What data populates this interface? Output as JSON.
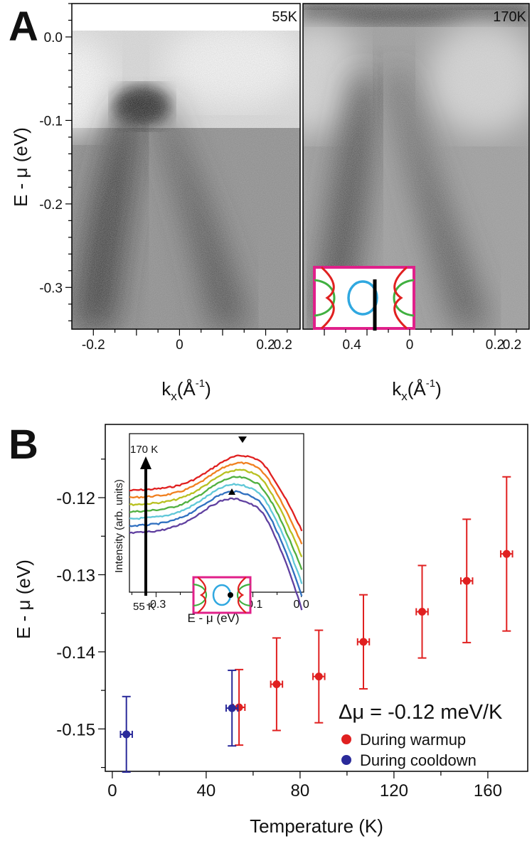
{
  "panel_labels": {
    "a": "A",
    "b": "B"
  },
  "chart_data": [
    {
      "type": "heatmap",
      "panel": "A-left",
      "title": "55K",
      "xlabel": "k",
      "xlabel_sub": "x",
      "xlabel_unit": "(Å",
      "xlabel_exp": "-1",
      "xlabel_close": ")",
      "ylabel": "E - μ (eV)",
      "xlim": [
        -0.25,
        0.28
      ],
      "ylim": [
        -0.35,
        0.04
      ],
      "xticks": [
        "-0.2",
        "0",
        "0.2",
        "0.4",
        "0.2"
      ],
      "yticks": [
        "0.0",
        "-0.1",
        "-0.2",
        "-0.3"
      ],
      "ytick_values": [
        0.0,
        -0.1,
        -0.2,
        -0.3
      ],
      "colormap": "grayscale, dark = high intensity",
      "band_apex": {
        "k": 0.03,
        "E": -0.07
      }
    },
    {
      "type": "heatmap",
      "panel": "A-right",
      "title": "170K",
      "xlabel": "k",
      "xlabel_sub": "x",
      "xlabel_unit": "(Å",
      "xlabel_exp": "-1",
      "xlabel_close": ")",
      "xlim": [
        -0.25,
        0.28
      ],
      "ylim": [
        -0.35,
        0.04
      ],
      "xticks": [
        "0",
        "0.2",
        "0.4",
        "0.2"
      ],
      "colormap": "grayscale, dark = high intensity",
      "inset": "Fermi surface schematic with cut line"
    },
    {
      "type": "scatter",
      "panel": "B",
      "xlabel": "Temperature (K)",
      "ylabel": "E - μ (eV)",
      "xlim": [
        -3,
        177
      ],
      "ylim": [
        -0.1555,
        -0.1105
      ],
      "xticks": [
        0,
        40,
        80,
        120,
        160
      ],
      "yticks": [
        -0.12,
        -0.13,
        -0.14,
        -0.15
      ],
      "annotation": "Δμ = -0.12 meV/K",
      "legend_position": "bottom-right",
      "series": [
        {
          "name": "During warmup",
          "color": "#e02020",
          "points": [
            {
              "x": 54,
              "y": -0.1472,
              "xerr": 2.5,
              "yerr": 0.0049
            },
            {
              "x": 70,
              "y": -0.1442,
              "xerr": 2.5,
              "yerr": 0.006
            },
            {
              "x": 88,
              "y": -0.1432,
              "xerr": 2.5,
              "yerr": 0.006
            },
            {
              "x": 107,
              "y": -0.1387,
              "xerr": 2.5,
              "yerr": 0.0061
            },
            {
              "x": 132,
              "y": -0.1348,
              "xerr": 2.5,
              "yerr": 0.006
            },
            {
              "x": 151,
              "y": -0.1308,
              "xerr": 2.5,
              "yerr": 0.008
            },
            {
              "x": 168,
              "y": -0.1273,
              "xerr": 2.5,
              "yerr": 0.01
            }
          ]
        },
        {
          "name": "During cooldown",
          "color": "#2a2a9a",
          "points": [
            {
              "x": 6,
              "y": -0.1507,
              "xerr": 2.5,
              "yerr": 0.0049
            },
            {
              "x": 51,
              "y": -0.1473,
              "xerr": 2.5,
              "yerr": 0.0049
            }
          ]
        }
      ]
    },
    {
      "type": "line",
      "panel": "B-inset",
      "xlabel": "E - μ (eV)",
      "ylabel": "Intensity (arb. units)",
      "xlim": [
        -0.355,
        0.005
      ],
      "xticks": [
        "-0.3",
        "-0.2",
        "-0.1",
        "0.0"
      ],
      "xtick_values": [
        -0.3,
        -0.2,
        -0.1,
        0.0
      ],
      "arrow_top_label": "170 K",
      "arrow_bottom_label": "55 K",
      "peak_markers": [
        -0.125,
        -0.145
      ],
      "series": [
        {
          "color": "#e02020"
        },
        {
          "color": "#f08020"
        },
        {
          "color": "#b8c020"
        },
        {
          "color": "#50b040"
        },
        {
          "color": "#60c8d8"
        },
        {
          "color": "#3070c0"
        },
        {
          "color": "#6040a0"
        }
      ]
    }
  ]
}
